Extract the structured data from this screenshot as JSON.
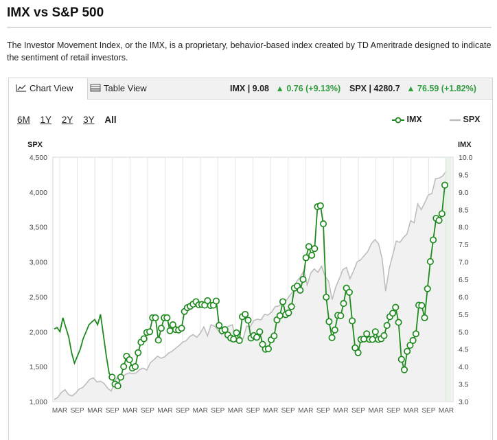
{
  "header": {
    "title": "IMX vs S&P 500",
    "description": "The Investor Movement Index, or the IMX, is a proprietary, behavior-based index created by TD Ameritrade designed to indicate the sentiment of retail investors."
  },
  "tabs": [
    {
      "label": "Chart View",
      "icon": "line-chart-icon",
      "active": true
    },
    {
      "label": "Table View",
      "icon": "table-icon",
      "active": false
    }
  ],
  "quotes": {
    "imx": {
      "name": "IMX | 9.08",
      "change": "0.76 (+9.13%)"
    },
    "spx": {
      "name": "SPX | 4280.7",
      "change": "76.59 (+1.82%)"
    }
  },
  "ranges": [
    {
      "label": "6M",
      "selected": false
    },
    {
      "label": "1Y",
      "selected": false
    },
    {
      "label": "2Y",
      "selected": false
    },
    {
      "label": "3Y",
      "selected": false
    },
    {
      "label": "All",
      "selected": true
    }
  ],
  "legend": {
    "imx": "IMX",
    "spx": "SPX"
  },
  "colors": {
    "imx": "#1e8a1e",
    "spx": "#bdbdbd",
    "up": "#2e9e3e"
  },
  "chart_data": {
    "type": "line",
    "left_axis_title": "SPX",
    "right_axis_title": "IMX",
    "left_ticks": [
      "4,500",
      "4,000",
      "3,500",
      "3,000",
      "2,500",
      "2,000",
      "1,500",
      "1,000"
    ],
    "right_ticks": [
      "10.0",
      "9.5",
      "9.0",
      "8.5",
      "8.0",
      "7.5",
      "7.0",
      "6.5",
      "6.0",
      "5.5",
      "5.0",
      "4.5",
      "4.0",
      "3.5",
      "3.0"
    ],
    "x_ticks": [
      "MAR",
      "SEP",
      "MAR",
      "SEP",
      "MAR",
      "SEP",
      "MAR",
      "SEP",
      "MAR",
      "SEP",
      "MAR",
      "SEP",
      "MAR",
      "SEP",
      "MAR",
      "SEP",
      "MAR",
      "SEP",
      "MAR",
      "SEP",
      "MAR",
      "SEP",
      "MAR"
    ],
    "left_ylim": [
      1000,
      4500
    ],
    "right_ylim": [
      3.0,
      10.0
    ],
    "grid": "vertical",
    "spx": [
      1030,
      1060,
      1130,
      1170,
      1100,
      1080,
      1120,
      1180,
      1200,
      1260,
      1320,
      1340,
      1280,
      1290,
      1260,
      1190,
      1150,
      1290,
      1370,
      1340,
      1390,
      1410,
      1400,
      1410,
      1460,
      1480,
      1450,
      1560,
      1600,
      1650,
      1620,
      1640,
      1690,
      1720,
      1760,
      1800,
      1850,
      1870,
      1930,
      1960,
      1920,
      1980,
      2070,
      1940,
      2100,
      2080,
      2020,
      1960,
      2060,
      2080,
      2100,
      1880,
      1930,
      1900,
      2080,
      2070,
      2160,
      2180,
      2170,
      2250,
      2240,
      2280,
      2360,
      2370,
      2410,
      2440,
      2510,
      2580,
      2720,
      2780,
      2870,
      2670,
      2840,
      2900,
      2850,
      2940,
      2800,
      2720,
      2460,
      2640,
      2760,
      2890,
      2920,
      2760,
      2870,
      3000,
      3030,
      3090,
      3150,
      3260,
      3320,
      3260,
      3050,
      2580,
      2900,
      3100,
      3300,
      3280,
      3350,
      3400,
      3590,
      3560,
      3830,
      3750,
      3850,
      3960,
      3980,
      4190,
      4200,
      4230,
      4300
    ],
    "imx": [
      5.08,
      5.12,
      5.0,
      5.4,
      5.12,
      4.85,
      4.4,
      4.1,
      4.3,
      4.5,
      4.8,
      5.0,
      5.2,
      5.28,
      5.35,
      5.2,
      5.5,
      4.9,
      4.3,
      3.8,
      3.7,
      3.5,
      3.45,
      3.7,
      4.0,
      4.3,
      4.2,
      3.96,
      4.0,
      4.4,
      4.7,
      4.8,
      4.98,
      5.0,
      5.4,
      5.4,
      4.76,
      5.1,
      5.4,
      5.4,
      5.03,
      5.2,
      5.06,
      5.05,
      5.1,
      5.58,
      5.69,
      5.73,
      5.79,
      5.86,
      5.77,
      5.78,
      5.76,
      5.89,
      5.75,
      5.76,
      5.88,
      5.18,
      5.03,
      5.06,
      4.91,
      4.82,
      4.79,
      4.97,
      4.75,
      5.43,
      5.5,
      5.33,
      4.82,
      4.89,
      4.84,
      5.0,
      4.64,
      4.5,
      4.51,
      4.77,
      4.88,
      5.34,
      5.46,
      5.86,
      5.49,
      5.54,
      5.72,
      6.25,
      6.31,
      6.19,
      6.5,
      7.12,
      7.44,
      7.19,
      7.38,
      8.58,
      8.61,
      8.09,
      5.99,
      5.29,
      4.83,
      5.05,
      5.47,
      5.46,
      5.81,
      6.25,
      6.13,
      5.31,
      4.54,
      4.4,
      4.78,
      4.79,
      4.94,
      4.78,
      4.78,
      5.0,
      4.78,
      4.8,
      4.89,
      5.18,
      5.43,
      5.53,
      5.7,
      5.27,
      4.21,
      3.91,
      4.44,
      4.61,
      4.75,
      4.94,
      5.76,
      5.75,
      5.4,
      6.23,
      7.01,
      7.63,
      8.25,
      8.19,
      8.38,
      9.2
    ],
    "imx_markers": "all-points-except-first-twenty"
  }
}
